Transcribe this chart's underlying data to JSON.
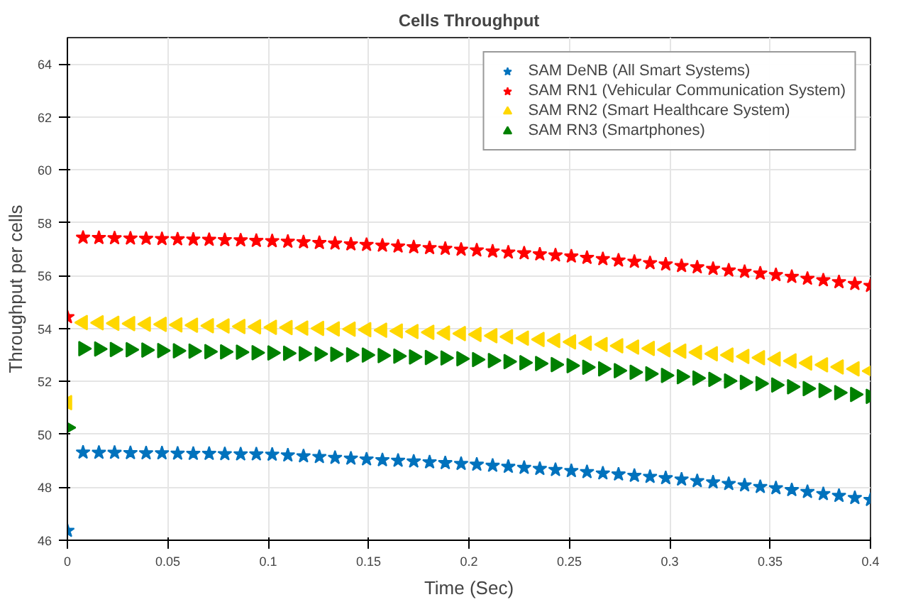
{
  "chart_data": {
    "type": "scatter",
    "title": "Cells Throughput",
    "xlabel": "Time (Sec)",
    "ylabel": "Throughput per cells",
    "x": [
      0,
      0.0078,
      0.0157,
      0.0235,
      0.0314,
      0.0392,
      0.0471,
      0.0549,
      0.0627,
      0.0706,
      0.0784,
      0.0863,
      0.0941,
      0.102,
      0.1098,
      0.1176,
      0.1255,
      0.1333,
      0.1412,
      0.149,
      0.1569,
      0.1647,
      0.1725,
      0.1804,
      0.1882,
      0.1961,
      0.2039,
      0.2118,
      0.2196,
      0.2275,
      0.2353,
      0.2431,
      0.251,
      0.2588,
      0.2667,
      0.2745,
      0.2824,
      0.2902,
      0.298,
      0.3059,
      0.3137,
      0.3216,
      0.3294,
      0.3373,
      0.3451,
      0.3529,
      0.3608,
      0.3686,
      0.3765,
      0.3843,
      0.3922,
      0.4
    ],
    "series": [
      {
        "name": "SAM DeNB (All Smart Systems)",
        "color": "#0072bd",
        "marker": "star",
        "values": [
          46.36,
          49.32,
          49.31,
          49.31,
          49.3,
          49.29,
          49.29,
          49.28,
          49.27,
          49.27,
          49.26,
          49.25,
          49.25,
          49.24,
          49.21,
          49.18,
          49.15,
          49.12,
          49.09,
          49.06,
          49.03,
          49.01,
          48.98,
          48.95,
          48.92,
          48.89,
          48.86,
          48.82,
          48.78,
          48.74,
          48.7,
          48.66,
          48.62,
          48.58,
          48.53,
          48.49,
          48.44,
          48.4,
          48.35,
          48.3,
          48.24,
          48.19,
          48.13,
          48.08,
          48.02,
          47.97,
          47.9,
          47.83,
          47.75,
          47.68,
          47.6,
          47.53
        ]
      },
      {
        "name": "SAM RN1 (Vehicular Communication System)",
        "color": "#ff0000",
        "marker": "star",
        "values": [
          54.44,
          57.44,
          57.43,
          57.42,
          57.41,
          57.4,
          57.39,
          57.38,
          57.37,
          57.36,
          57.35,
          57.34,
          57.32,
          57.31,
          57.29,
          57.27,
          57.24,
          57.22,
          57.19,
          57.17,
          57.14,
          57.11,
          57.08,
          57.05,
          57.02,
          56.99,
          56.96,
          56.92,
          56.88,
          56.85,
          56.81,
          56.77,
          56.73,
          56.68,
          56.63,
          56.58,
          56.53,
          56.48,
          56.43,
          56.37,
          56.32,
          56.26,
          56.2,
          56.15,
          56.09,
          56.03,
          55.96,
          55.89,
          55.83,
          55.76,
          55.69,
          55.62
        ]
      },
      {
        "name": "SAM RN2 (Smart Healthcare System)",
        "color": "#ffd700",
        "marker": "triangle-left",
        "values": [
          51.2,
          54.23,
          54.22,
          54.2,
          54.19,
          54.17,
          54.16,
          54.14,
          54.13,
          54.11,
          54.1,
          54.08,
          54.07,
          54.05,
          54.04,
          54.02,
          54.01,
          53.99,
          53.98,
          53.96,
          53.94,
          53.91,
          53.89,
          53.86,
          53.83,
          53.81,
          53.78,
          53.73,
          53.69,
          53.64,
          53.59,
          53.55,
          53.5,
          53.45,
          53.4,
          53.35,
          53.3,
          53.25,
          53.2,
          53.15,
          53.1,
          53.05,
          53.0,
          52.95,
          52.9,
          52.85,
          52.78,
          52.7,
          52.63,
          52.55,
          52.48,
          52.4
        ]
      },
      {
        "name": "SAM RN3 (Smartphones)",
        "color": "#008000",
        "marker": "triangle-right",
        "values": [
          50.26,
          53.24,
          53.23,
          53.21,
          53.2,
          53.19,
          53.17,
          53.16,
          53.15,
          53.13,
          53.12,
          53.11,
          53.09,
          53.08,
          53.07,
          53.05,
          53.04,
          53.03,
          53.01,
          53.0,
          52.98,
          52.96,
          52.93,
          52.91,
          52.89,
          52.86,
          52.83,
          52.79,
          52.75,
          52.71,
          52.68,
          52.64,
          52.6,
          52.54,
          52.48,
          52.41,
          52.35,
          52.29,
          52.23,
          52.18,
          52.13,
          52.08,
          52.02,
          51.97,
          51.92,
          51.87,
          51.8,
          51.73,
          51.66,
          51.58,
          51.51,
          51.44
        ]
      }
    ],
    "xlim": [
      0,
      0.4
    ],
    "ylim": [
      46,
      65
    ],
    "xticks": [
      0,
      0.05,
      0.1,
      0.15,
      0.2,
      0.25,
      0.3,
      0.35,
      0.4
    ],
    "yticks": [
      46,
      48,
      50,
      52,
      54,
      56,
      58,
      60,
      62,
      64
    ],
    "grid": true,
    "legend": "top right"
  }
}
